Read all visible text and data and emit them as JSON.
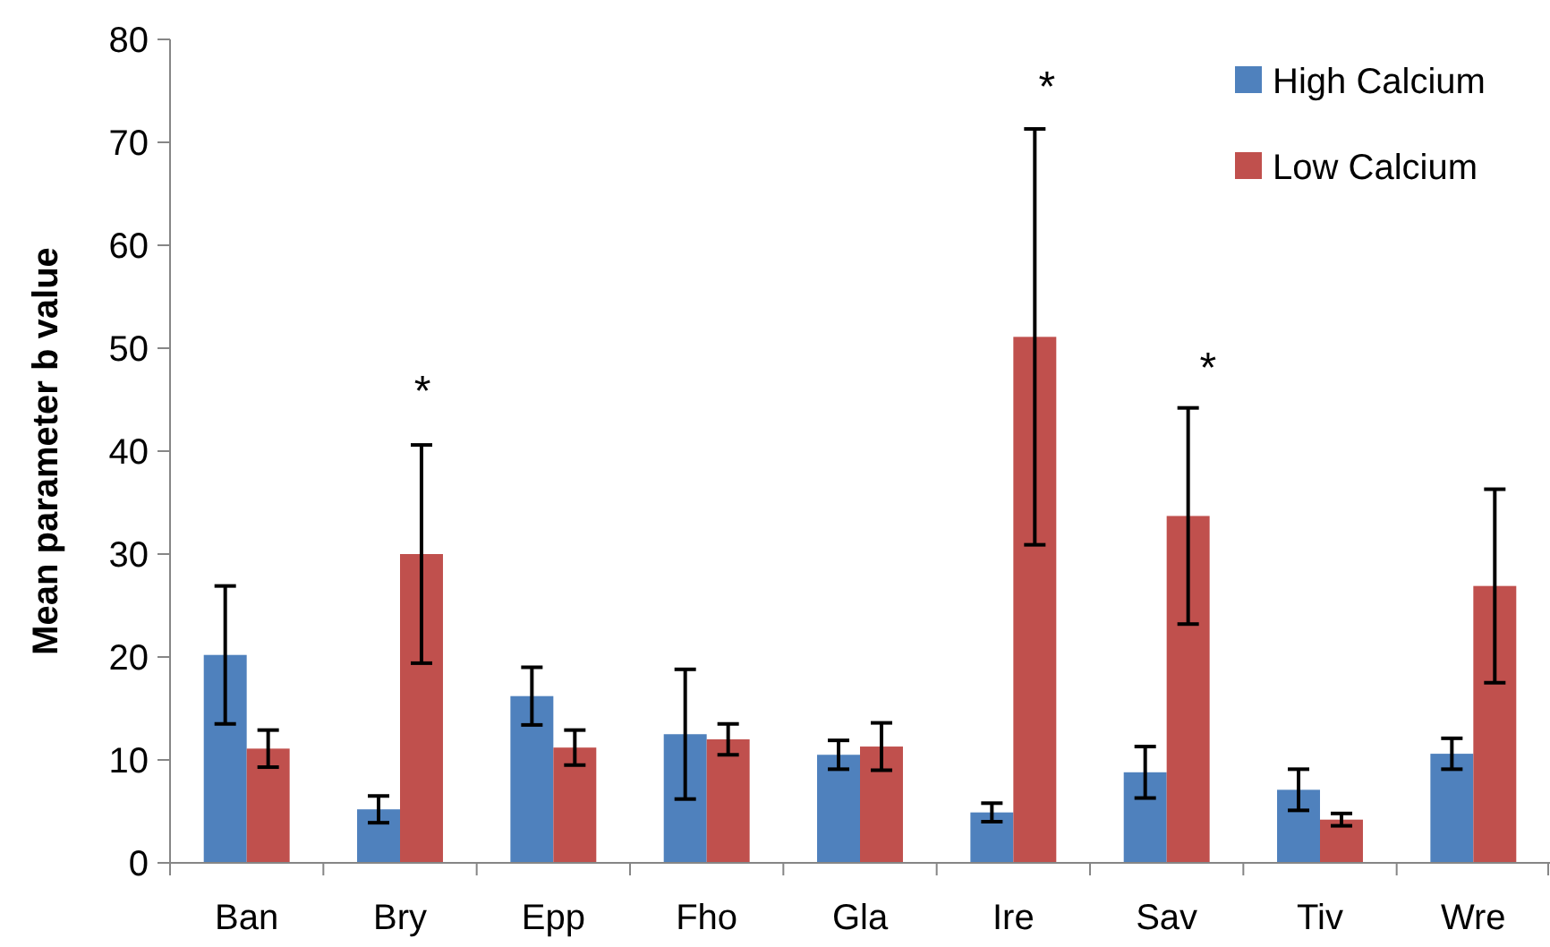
{
  "chart_data": {
    "type": "bar",
    "ylabel": "Mean parameter b value",
    "categories": [
      "Ban",
      "Bry",
      "Epp",
      "Fho",
      "Gla",
      "Ire",
      "Sav",
      "Tiv",
      "Wre"
    ],
    "series": [
      {
        "name": "High Calcium",
        "color": "#4f81bd",
        "values": [
          20.2,
          5.2,
          16.2,
          12.5,
          10.5,
          4.9,
          8.8,
          7.1,
          10.6
        ],
        "errors": [
          6.7,
          1.3,
          2.8,
          6.3,
          1.4,
          0.9,
          2.5,
          2.0,
          1.5
        ]
      },
      {
        "name": "Low Calcium",
        "color": "#c0504d",
        "values": [
          11.1,
          30.0,
          11.2,
          12.0,
          11.3,
          51.1,
          33.7,
          4.2,
          26.9
        ],
        "errors": [
          1.8,
          10.6,
          1.7,
          1.5,
          2.3,
          20.2,
          10.5,
          0.6,
          9.4
        ]
      }
    ],
    "annotations": [
      "*",
      "*",
      "*"
    ],
    "ylim": [
      0,
      80
    ],
    "yticks": [
      0,
      10,
      20,
      30,
      40,
      50,
      60,
      70,
      80
    ],
    "grid": false,
    "legend": "top right"
  }
}
